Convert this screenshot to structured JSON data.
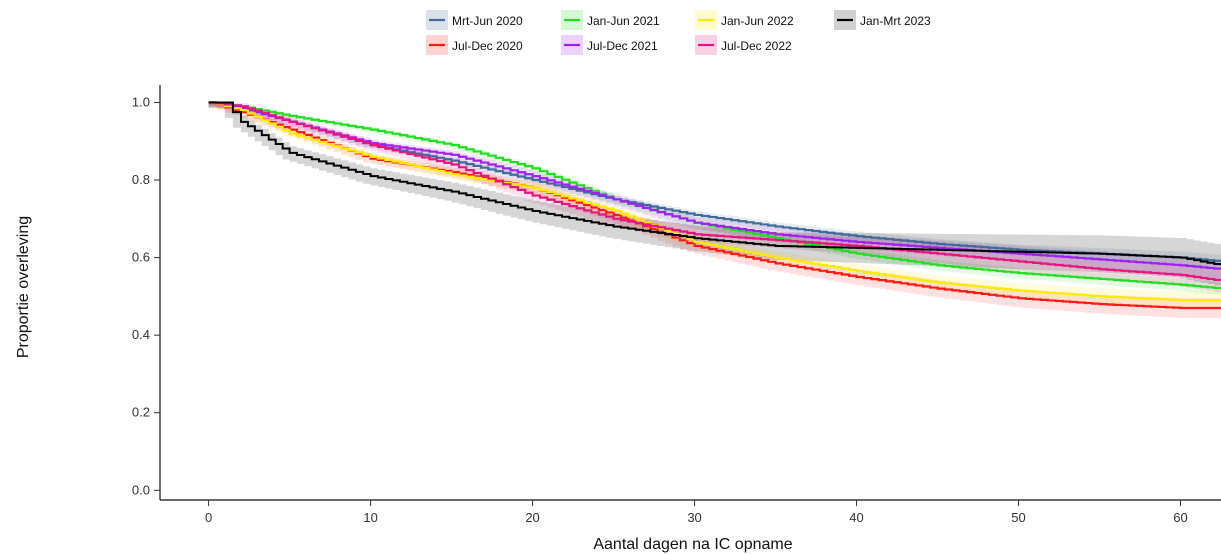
{
  "chart_data": {
    "type": "line",
    "subtype": "kaplan-meier step curves with confidence bands",
    "xlabel": "Aantal dagen na IC opname",
    "ylabel": "Proportie overleving",
    "xlim": [
      -3,
      62.5
    ],
    "ylim": [
      -0.025,
      1.045
    ],
    "x_ticks": [
      0,
      10,
      20,
      30,
      40,
      50,
      60
    ],
    "y_ticks": [
      0.0,
      0.2,
      0.4,
      0.6,
      0.8,
      1.0
    ],
    "y_tick_labels": [
      "0.0",
      "0.2",
      "0.4",
      "0.6",
      "0.8",
      "1.0"
    ],
    "grid": false,
    "legend_position": "top",
    "series": [
      {
        "name": "Mrt-Jun 2020",
        "color": "#3f6b96",
        "band_halfwidth": 0.012,
        "points": [
          [
            0,
            1.0
          ],
          [
            2,
            0.985
          ],
          [
            5,
            0.95
          ],
          [
            10,
            0.89
          ],
          [
            15,
            0.85
          ],
          [
            20,
            0.8
          ],
          [
            25,
            0.75
          ],
          [
            30,
            0.71
          ],
          [
            35,
            0.68
          ],
          [
            40,
            0.655
          ],
          [
            45,
            0.635
          ],
          [
            50,
            0.62
          ],
          [
            55,
            0.61
          ],
          [
            60,
            0.6
          ],
          [
            62.5,
            0.59
          ]
        ]
      },
      {
        "name": "Jul-Dec 2020",
        "color": "#ff1a1a",
        "band_halfwidth": 0.02,
        "points": [
          [
            0,
            1.0
          ],
          [
            2,
            0.975
          ],
          [
            5,
            0.93
          ],
          [
            10,
            0.855
          ],
          [
            15,
            0.82
          ],
          [
            20,
            0.78
          ],
          [
            25,
            0.71
          ],
          [
            30,
            0.63
          ],
          [
            35,
            0.585
          ],
          [
            40,
            0.55
          ],
          [
            45,
            0.52
          ],
          [
            50,
            0.495
          ],
          [
            55,
            0.48
          ],
          [
            60,
            0.47
          ],
          [
            62.5,
            0.47
          ]
        ]
      },
      {
        "name": "Jan-Jun 2021",
        "color": "#22dd22",
        "band_halfwidth": 0.012,
        "points": [
          [
            0,
            1.0
          ],
          [
            2,
            0.99
          ],
          [
            5,
            0.965
          ],
          [
            10,
            0.93
          ],
          [
            15,
            0.89
          ],
          [
            20,
            0.83
          ],
          [
            25,
            0.75
          ],
          [
            30,
            0.69
          ],
          [
            35,
            0.65
          ],
          [
            40,
            0.61
          ],
          [
            45,
            0.58
          ],
          [
            50,
            0.56
          ],
          [
            55,
            0.545
          ],
          [
            60,
            0.53
          ],
          [
            62.5,
            0.52
          ]
        ]
      },
      {
        "name": "Jul-Dec 2021",
        "color": "#a020f0",
        "band_halfwidth": 0.018,
        "points": [
          [
            0,
            1.0
          ],
          [
            2,
            0.985
          ],
          [
            5,
            0.95
          ],
          [
            10,
            0.895
          ],
          [
            15,
            0.865
          ],
          [
            20,
            0.81
          ],
          [
            25,
            0.75
          ],
          [
            30,
            0.69
          ],
          [
            35,
            0.66
          ],
          [
            40,
            0.64
          ],
          [
            45,
            0.625
          ],
          [
            50,
            0.61
          ],
          [
            55,
            0.595
          ],
          [
            60,
            0.58
          ],
          [
            62.5,
            0.57
          ]
        ]
      },
      {
        "name": "Jan-Jun 2022",
        "color": "#ffeb00",
        "band_halfwidth": 0.018,
        "points": [
          [
            0,
            1.0
          ],
          [
            2,
            0.98
          ],
          [
            5,
            0.92
          ],
          [
            10,
            0.86
          ],
          [
            15,
            0.815
          ],
          [
            20,
            0.78
          ],
          [
            25,
            0.72
          ],
          [
            30,
            0.64
          ],
          [
            35,
            0.6
          ],
          [
            40,
            0.565
          ],
          [
            45,
            0.535
          ],
          [
            50,
            0.515
          ],
          [
            55,
            0.5
          ],
          [
            60,
            0.49
          ],
          [
            62.5,
            0.49
          ]
        ]
      },
      {
        "name": "Jul-Dec 2022",
        "color": "#e6157f",
        "band_halfwidth": 0.022,
        "points": [
          [
            0,
            1.0
          ],
          [
            2,
            0.99
          ],
          [
            5,
            0.95
          ],
          [
            10,
            0.89
          ],
          [
            15,
            0.84
          ],
          [
            20,
            0.76
          ],
          [
            25,
            0.7
          ],
          [
            30,
            0.66
          ],
          [
            35,
            0.645
          ],
          [
            40,
            0.63
          ],
          [
            45,
            0.61
          ],
          [
            50,
            0.59
          ],
          [
            55,
            0.57
          ],
          [
            60,
            0.555
          ],
          [
            62.5,
            0.54
          ]
        ]
      },
      {
        "name": "Jan-Mrt 2023",
        "color": "#000000",
        "band_halfwidth": 0.04,
        "points": [
          [
            0,
            1.0
          ],
          [
            1,
            1.0
          ],
          [
            2,
            0.95
          ],
          [
            5,
            0.87
          ],
          [
            10,
            0.81
          ],
          [
            15,
            0.77
          ],
          [
            20,
            0.72
          ],
          [
            25,
            0.68
          ],
          [
            30,
            0.65
          ],
          [
            35,
            0.63
          ],
          [
            40,
            0.625
          ],
          [
            45,
            0.62
          ],
          [
            50,
            0.615
          ],
          [
            55,
            0.61
          ],
          [
            60,
            0.6
          ],
          [
            62.5,
            0.58
          ]
        ]
      }
    ]
  }
}
